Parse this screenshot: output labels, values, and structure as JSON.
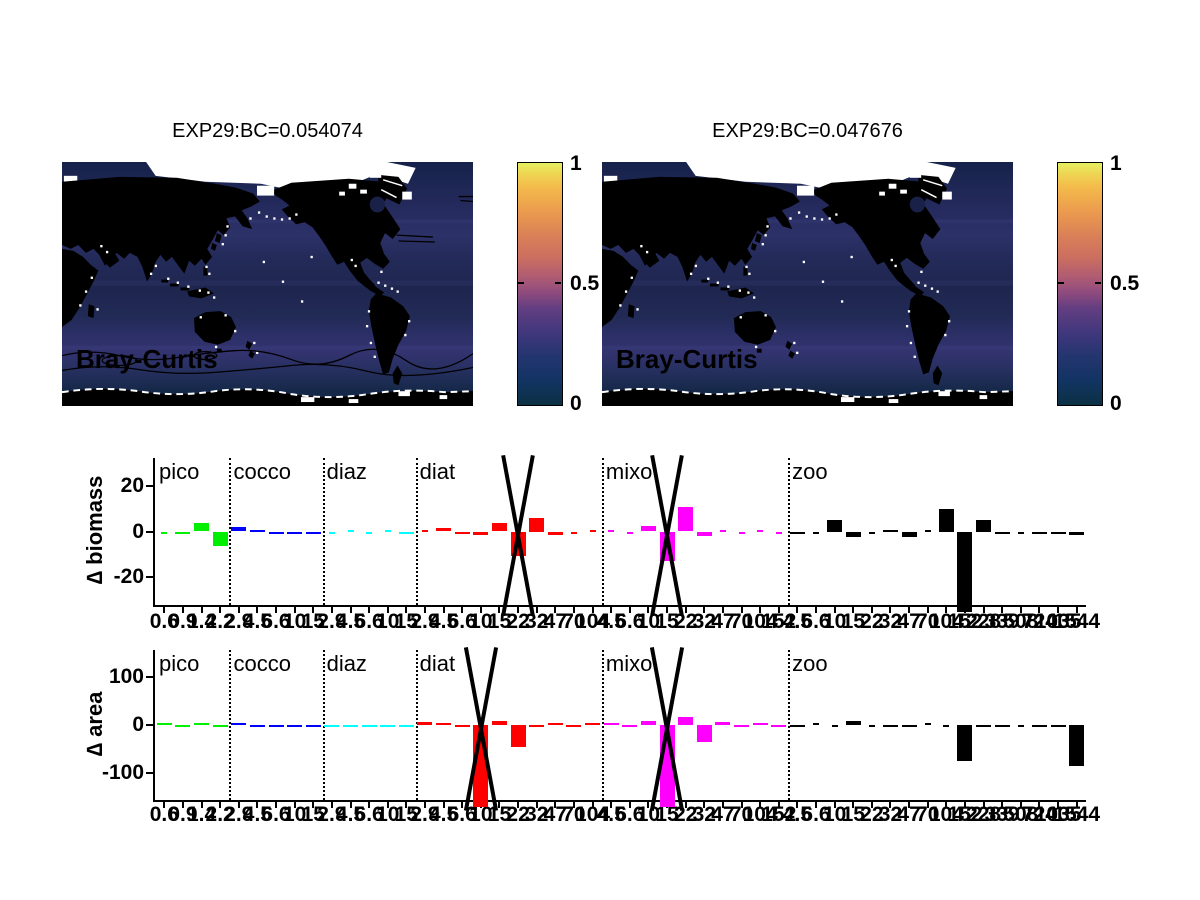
{
  "maps": {
    "left": {
      "title": "EXP29:BC=0.054074",
      "overlay_label": "Bray-Curtis"
    },
    "right": {
      "title": "EXP29:BC=0.047676",
      "overlay_label": "Bray-Curtis"
    },
    "colorbar": {
      "tick_top": "1",
      "tick_mid": "0.5",
      "tick_bottom": "0"
    },
    "colors": {
      "ocean": "#1a2149",
      "land": "#000000",
      "no_data": "#ffffff"
    }
  },
  "chart_data": [
    {
      "type": "bar",
      "ylabel": "∆ biomass",
      "yticks": [
        20,
        0,
        -20
      ],
      "ylim": [
        -32,
        32
      ],
      "grid": false,
      "groups": [
        {
          "name": "pico",
          "color": "#00ee00",
          "sizes": [
            "0.6",
            "0.9",
            "1.4",
            "2.2"
          ],
          "values": [
            -0.3,
            -0.8,
            3.5,
            -6.5
          ]
        },
        {
          "name": "cocco",
          "color": "#0000ff",
          "sizes": [
            "2.9",
            "4.5",
            "6.6",
            "10",
            "15"
          ],
          "values": [
            1.8,
            0.8,
            -1.2,
            -1,
            -0.8
          ]
        },
        {
          "name": "diaz",
          "color": "#00ffff",
          "sizes": [
            "2.9",
            "4.5",
            "6.6",
            "10",
            "15"
          ],
          "values": [
            -0.3,
            0.3,
            -0.3,
            0.3,
            -0.8
          ]
        },
        {
          "name": "diat",
          "color": "#ff0000",
          "sizes": [
            "2.9",
            "4.5",
            "6.6",
            "10",
            "15",
            "22",
            "32",
            "47",
            "70",
            "104"
          ],
          "values": [
            0.3,
            1.5,
            -0.4,
            -1.5,
            3.5,
            -10.5,
            6,
            -1.5,
            -0.3,
            0.2
          ],
          "offscale_marker_index": 5
        },
        {
          "name": "mixo",
          "color": "#ff00ff",
          "sizes": [
            "4.5",
            "6.6",
            "10",
            "15",
            "22",
            "32",
            "47",
            "70",
            "104",
            "152"
          ],
          "values": [
            0.3,
            -0.3,
            2.5,
            -13,
            10.5,
            -2,
            0.2,
            -0.2,
            0.2,
            -0.2
          ],
          "offscale_marker_index": 3
        },
        {
          "name": "zoo",
          "color": "#000000",
          "sizes": [
            "4.5",
            "6.6",
            "10",
            "15",
            "22",
            "32",
            "47",
            "70",
            "104",
            "152",
            "228",
            "339",
            "508",
            "724",
            "1035",
            "1544"
          ],
          "values": [
            -0.5,
            -0.2,
            5,
            -2.6,
            -0.3,
            0.8,
            -2.5,
            0.2,
            10,
            -33,
            5,
            -1,
            -0.3,
            -0.8,
            -0.8,
            -1.5
          ]
        }
      ]
    },
    {
      "type": "bar",
      "ylabel": "∆ area",
      "yticks": [
        100,
        0,
        -100
      ],
      "ylim": [
        -156,
        156
      ],
      "grid": false,
      "groups": [
        {
          "name": "pico",
          "color": "#00ee00",
          "sizes": [
            "0.6",
            "0.9",
            "1.4",
            "2.2"
          ],
          "values": [
            0.5,
            -0.5,
            0.5,
            -1
          ]
        },
        {
          "name": "cocco",
          "color": "#0000ff",
          "sizes": [
            "2.9",
            "4.5",
            "6.6",
            "10",
            "15"
          ],
          "values": [
            0.5,
            -0.5,
            -1,
            -5,
            -1
          ]
        },
        {
          "name": "diaz",
          "color": "#00ffff",
          "sizes": [
            "2.9",
            "4.5",
            "6.6",
            "10",
            "15"
          ],
          "values": [
            -5,
            -4,
            -0.5,
            -4,
            -0.5
          ]
        },
        {
          "name": "diat",
          "color": "#ff0000",
          "sizes": [
            "2.9",
            "4.5",
            "6.6",
            "10",
            "15",
            "22",
            "32",
            "47",
            "70",
            "104"
          ],
          "values": [
            7,
            0.5,
            -1,
            -200,
            8,
            -45,
            -0.5,
            0.5,
            -0.5,
            0.5
          ],
          "offscale_marker_index": 3
        },
        {
          "name": "mixo",
          "color": "#ff00ff",
          "sizes": [
            "4.5",
            "6.6",
            "10",
            "15",
            "22",
            "32",
            "47",
            "70",
            "104",
            "152"
          ],
          "values": [
            0.5,
            -0.5,
            8,
            -200,
            16,
            -35,
            7,
            -0.5,
            0.5,
            -0.5
          ],
          "offscale_marker_index": 3
        },
        {
          "name": "zoo",
          "color": "#000000",
          "sizes": [
            "4.5",
            "6.6",
            "10",
            "15",
            "22",
            "32",
            "47",
            "70",
            "104",
            "152",
            "228",
            "339",
            "508",
            "724",
            "1035",
            "1544"
          ],
          "values": [
            -3,
            0.3,
            -0.3,
            8,
            -0.3,
            -1,
            -1,
            0.3,
            -0.3,
            -75,
            -0.5,
            -2,
            -0.3,
            -1.5,
            -2,
            -85
          ]
        }
      ]
    }
  ]
}
